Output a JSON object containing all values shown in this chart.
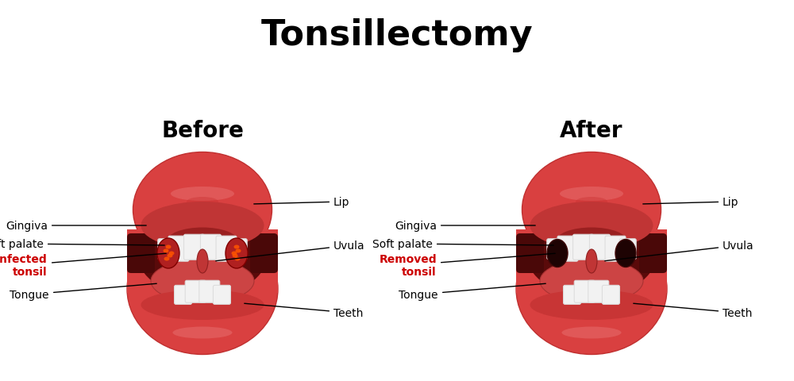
{
  "title": "Tonsillectomy",
  "title_fontsize": 32,
  "title_fontweight": "bold",
  "background_color": "#ffffff",
  "before_label": "Before",
  "after_label": "After",
  "subtitle_fontsize": 20,
  "subtitle_fontweight": "bold",
  "lip_color": "#d94040",
  "lip_light": "#e06060",
  "lip_dark": "#c03030",
  "interior_dark": "#5a0a0a",
  "interior_mid": "#7a1010",
  "throat_dark": "#3a0505",
  "gum_color": "#c03535",
  "tongue_color": "#cc4444",
  "tooth_color": "#f2f2f2",
  "tooth_edge": "#dddddd",
  "tonsil_infected": "#c02800",
  "tonsil_spot": "#ff5500",
  "tonsil_removed_dark": "#2a0505",
  "annotation_color": "#000000",
  "infected_label_color": "#cc0000",
  "removed_label_color": "#cc0000",
  "label_fontsize": 10,
  "line_color": "#000000"
}
